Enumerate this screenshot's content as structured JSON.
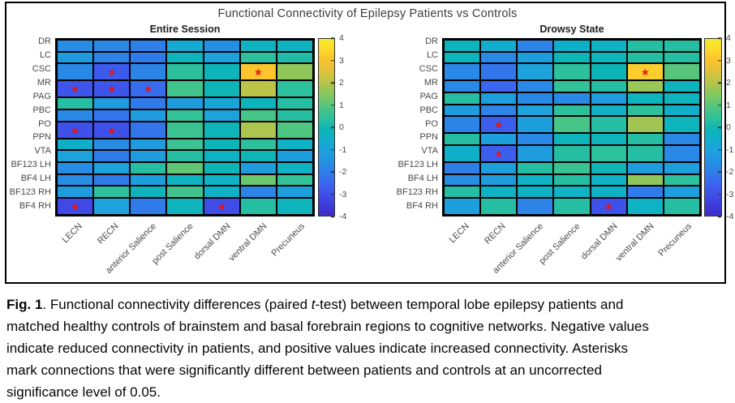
{
  "figure": {
    "title": "Functional Connectivity of Epilepsy Patients vs Controls",
    "colorbar": {
      "min": -4,
      "max": 4,
      "ticks": [
        4,
        3,
        2,
        1,
        0,
        -1,
        -2,
        -3,
        -4
      ],
      "colormap_stops": [
        [
          -4.0,
          "#3b2bc8"
        ],
        [
          -3.25,
          "#4046e4"
        ],
        [
          -2.5,
          "#3a67f0"
        ],
        [
          -2.0,
          "#2e80e8"
        ],
        [
          -1.5,
          "#2394e2"
        ],
        [
          -1.0,
          "#1da2dc"
        ],
        [
          -0.5,
          "#0fafc9"
        ],
        [
          -0.1,
          "#0db5b6"
        ],
        [
          0.4,
          "#2cc09d"
        ],
        [
          0.9,
          "#4ec581"
        ],
        [
          1.4,
          "#7cc863"
        ],
        [
          2.0,
          "#b4c44a"
        ],
        [
          2.6,
          "#e3c138"
        ],
        [
          3.1,
          "#fcc42d"
        ],
        [
          3.6,
          "#fbdd2c"
        ],
        [
          4.0,
          "#f3ea2d"
        ]
      ]
    }
  },
  "chart_data": [
    {
      "type": "heatmap",
      "title": "Entire Session",
      "rows": [
        "DR",
        "LC",
        "CSC",
        "MR",
        "PAG",
        "PBC",
        "PO",
        "PPN",
        "VTA",
        "BF123 LH",
        "BF4 LH",
        "BF123 RH",
        "BF4 RH"
      ],
      "columns": [
        "LECN",
        "RECN",
        "anterior Salience",
        "post Salience",
        "dorsal DMN",
        "ventral DMN",
        "Precuneus"
      ],
      "vmin": -4,
      "vmax": 4,
      "values": [
        [
          -1.7,
          -1.8,
          -2.0,
          -0.7,
          -1.6,
          -0.3,
          -0.3
        ],
        [
          -1.2,
          -1.9,
          -2.1,
          -0.2,
          -1.0,
          0.4,
          0.2
        ],
        [
          -1.8,
          -2.8,
          -1.9,
          0.4,
          -0.2,
          3.1,
          1.6
        ],
        [
          -2.9,
          -2.9,
          -2.4,
          0.7,
          -0.1,
          2.1,
          0.4
        ],
        [
          0.3,
          -1.2,
          -2.1,
          -1.2,
          -0.9,
          -0.2,
          0.3
        ],
        [
          -1.8,
          -2.2,
          -1.2,
          0.5,
          -1.0,
          0.8,
          0.3
        ],
        [
          -3.0,
          -3.0,
          -2.2,
          0.6,
          -0.1,
          1.9,
          0.9
        ],
        [
          -0.5,
          -1.7,
          -1.2,
          0.6,
          -0.1,
          0.4,
          -0.4
        ],
        [
          -1.0,
          -2.1,
          -1.2,
          0.3,
          -0.4,
          -0.1,
          -1.1
        ],
        [
          -1.7,
          -1.0,
          0.3,
          1.1,
          -0.1,
          -1.2,
          -0.4
        ],
        [
          -1.7,
          -2.1,
          -1.1,
          -0.3,
          -0.4,
          1.2,
          0.5
        ],
        [
          -1.2,
          0.4,
          -0.2,
          0.7,
          -0.4,
          -1.9,
          -1.1
        ],
        [
          -3.2,
          -1.0,
          -2.1,
          -0.2,
          -3.1,
          0.3,
          -0.2
        ]
      ],
      "significant_cells": [
        [
          2,
          1
        ],
        [
          2,
          5
        ],
        [
          3,
          0
        ],
        [
          3,
          1
        ],
        [
          3,
          2
        ],
        [
          6,
          0
        ],
        [
          6,
          1
        ],
        [
          12,
          0
        ],
        [
          12,
          4
        ]
      ]
    },
    {
      "type": "heatmap",
      "title": "Drowsy State",
      "rows": [
        "DR",
        "LC",
        "CSC",
        "MR",
        "PAG",
        "PBC",
        "PO",
        "PPN",
        "VTA",
        "BF123 LH",
        "BF4 LH",
        "BF123 RH",
        "BF4 RH"
      ],
      "columns": [
        "LECN",
        "RECN",
        "anterior Salience",
        "post Salience",
        "dorsal DMN",
        "ventral DMN",
        "Precuneus"
      ],
      "vmin": -4,
      "vmax": 4,
      "values": [
        [
          -0.2,
          -0.6,
          -1.9,
          -0.5,
          -0.4,
          0.3,
          0.3
        ],
        [
          -0.2,
          -1.8,
          -1.1,
          -0.1,
          -0.2,
          0.3,
          0.3
        ],
        [
          -1.8,
          -2.2,
          -1.0,
          0.4,
          -0.1,
          3.3,
          1.0
        ],
        [
          -1.8,
          -2.5,
          -1.8,
          0.5,
          0.3,
          1.7,
          -0.2
        ],
        [
          0.3,
          -1.1,
          -1.8,
          -1.8,
          -1.2,
          -0.2,
          -0.2
        ],
        [
          -1.2,
          -1.9,
          -1.0,
          0.4,
          -0.4,
          0.4,
          -0.5
        ],
        [
          -1.9,
          -2.7,
          -1.1,
          0.8,
          0.3,
          1.8,
          -0.2
        ],
        [
          0.3,
          -1.1,
          -1.8,
          -0.2,
          -0.2,
          0.3,
          -1.8
        ],
        [
          -0.5,
          -2.7,
          -1.2,
          0.3,
          0.4,
          0.3,
          -1.8
        ],
        [
          -2.0,
          -1.1,
          0.3,
          0.6,
          -0.1,
          -1.2,
          -1.1
        ],
        [
          -1.7,
          -1.2,
          -0.4,
          0.3,
          -0.4,
          1.6,
          0.4
        ],
        [
          0.3,
          -0.4,
          -0.4,
          -0.4,
          -0.4,
          -2.1,
          -1.1
        ],
        [
          -1.1,
          0.3,
          -1.9,
          0.3,
          -3.0,
          -0.4,
          0.3
        ]
      ],
      "significant_cells": [
        [
          2,
          5
        ],
        [
          6,
          1
        ],
        [
          8,
          1
        ],
        [
          12,
          4
        ]
      ]
    }
  ],
  "caption": {
    "lines": [
      [
        {
          "t": "Fig. 1",
          "b": true
        },
        {
          "t": ". Functional connectivity differences (paired "
        },
        {
          "t": "t",
          "i": true
        },
        {
          "t": "-test) between temporal lobe epilepsy patients and"
        }
      ],
      [
        {
          "t": "matched healthy controls of brainstem and basal forebrain regions to cognitive networks. Negative values"
        }
      ],
      [
        {
          "t": "indicate reduced connectivity in patients, and positive values indicate increased connectivity. Asterisks"
        }
      ],
      [
        {
          "t": "mark connections that were significantly different between patients and controls at an uncorrected"
        }
      ],
      [
        {
          "t": "significance level of 0.05."
        }
      ]
    ]
  },
  "colors": {
    "significance_marker": "#e81212",
    "grid_line": "#000000",
    "label_text": "#4a4a4a",
    "title_text": "#3d3d3d",
    "panel_border": "#000000",
    "background": "#ffffff"
  }
}
